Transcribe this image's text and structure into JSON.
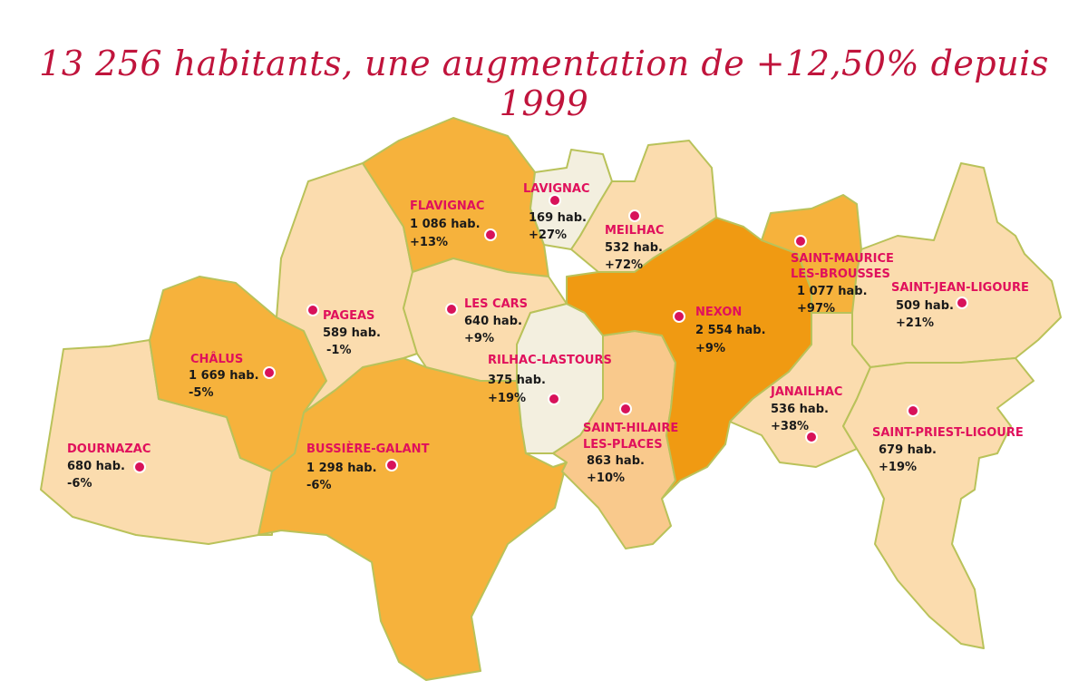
{
  "title": "13 256 habitants, une augmentation de +12,50% depuis 1999",
  "colors": {
    "title": "#c0143c",
    "label": "#e0105c",
    "dot": "#d8125a",
    "border": "#b9c25a",
    "very_light": "#f3efdf",
    "light": "#fbdcae",
    "light_medium": "#f9c98c",
    "medium": "#f6b23c",
    "dark": "#f09a12"
  },
  "communes": [
    {
      "id": "flavignac",
      "name": "FLAVIGNAC",
      "population": "1 086 hab.",
      "change": "+13%",
      "shade": "medium"
    },
    {
      "id": "lavignac",
      "name": "LAVIGNAC",
      "population": "169 hab.",
      "change": "+27%",
      "shade": "very_light"
    },
    {
      "id": "meilhac",
      "name": "MEILHAC",
      "population": "532 hab.",
      "change": "+72%",
      "shade": "light"
    },
    {
      "id": "saint-maurice",
      "name": "SAINT-MAURICE",
      "name2": "LES-BROUSSES",
      "population": "1 077 hab.",
      "change": "+97%",
      "shade": "medium"
    },
    {
      "id": "saint-jean-ligoure",
      "name": "SAINT-JEAN-LIGOURE",
      "population": "509 hab.",
      "change": "+21%",
      "shade": "light"
    },
    {
      "id": "pageas",
      "name": "PAGEAS",
      "population": "589 hab.",
      "change": "-1%",
      "shade": "light"
    },
    {
      "id": "les-cars",
      "name": "LES CARS",
      "population": "640 hab.",
      "change": "+9%",
      "shade": "light"
    },
    {
      "id": "nexon",
      "name": "NEXON",
      "population": "2 554 hab.",
      "change": "+9%",
      "shade": "dark"
    },
    {
      "id": "chalus",
      "name": "CHÂLUS",
      "population": "1 669 hab.",
      "change": "-5%",
      "shade": "medium"
    },
    {
      "id": "rilhac-lastours",
      "name": "RILHAC-LASTOURS",
      "population": "375 hab.",
      "change": "+19%",
      "shade": "very_light"
    },
    {
      "id": "janailhac",
      "name": "JANAILHAC",
      "population": "536 hab.",
      "change": "+38%",
      "shade": "light"
    },
    {
      "id": "saint-hilaire",
      "name": "SAINT-HILAIRE",
      "name2": "LES-PLACES",
      "population": "863 hab.",
      "change": "+10%",
      "shade": "light_medium"
    },
    {
      "id": "saint-priest-ligoure",
      "name": "SAINT-PRIEST-LIGOURE",
      "population": "679 hab.",
      "change": "+19%",
      "shade": "light"
    },
    {
      "id": "dournazac",
      "name": "DOURNAZAC",
      "population": "680 hab.",
      "change": "-6%",
      "shade": "light"
    },
    {
      "id": "bussiere-galant",
      "name": "BUSSIÈRE-GALANT",
      "population": "1 298 hab.",
      "change": "-6%",
      "shade": "medium"
    }
  ]
}
